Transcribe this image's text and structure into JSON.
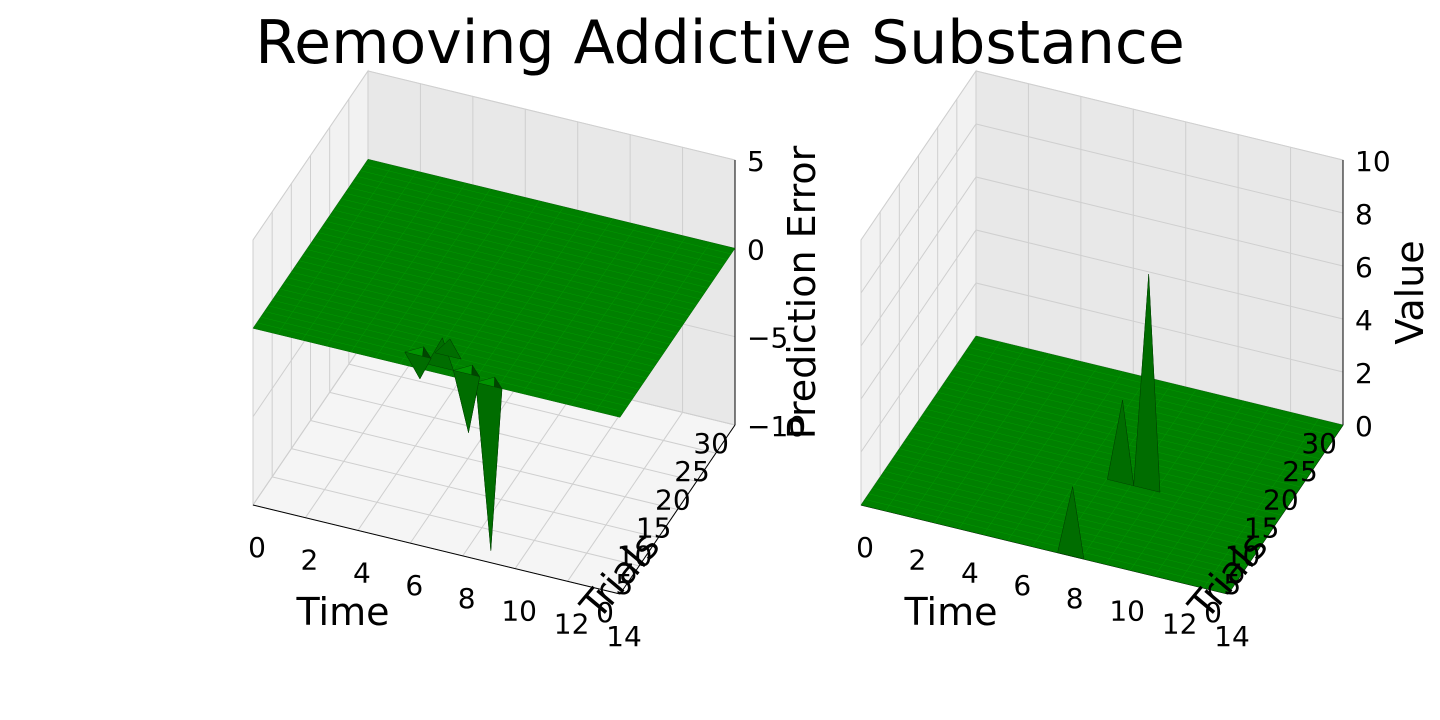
{
  "figure": {
    "title": "Removing Addictive Substance"
  },
  "chart_data": [
    {
      "type": "surface3d",
      "xlabel": "Time",
      "ylabel": "Trials",
      "zlabel": "Prediction Error",
      "xlim": [
        0,
        14
      ],
      "ylim": [
        0,
        30
      ],
      "zlim": [
        -10,
        5
      ],
      "x_ticks": [
        "0",
        "2",
        "4",
        "6",
        "8",
        "10",
        "12",
        "14"
      ],
      "y_ticks": [
        "0",
        "5",
        "10",
        "15",
        "20",
        "25",
        "30"
      ],
      "z_ticks": [
        "-10",
        "-5",
        "0",
        "5"
      ],
      "surface_color": "#008000",
      "features": [
        {
          "time": 9,
          "trial": 0,
          "value": -9.5
        },
        {
          "time": 8,
          "trial": 1,
          "value": -3.5
        },
        {
          "time": 7,
          "trial": 1,
          "value": 1.5
        },
        {
          "time": 6,
          "trial": 2,
          "value": -1.5
        },
        {
          "time": 7,
          "trial": 3,
          "value": 0.8
        }
      ]
    },
    {
      "type": "surface3d",
      "xlabel": "Time",
      "ylabel": "Trials",
      "zlabel": "Value",
      "xlim": [
        0,
        14
      ],
      "ylim": [
        0,
        30
      ],
      "zlim": [
        0,
        10
      ],
      "x_ticks": [
        "0",
        "2",
        "4",
        "6",
        "8",
        "10",
        "12",
        "14"
      ],
      "y_ticks": [
        "0",
        "5",
        "10",
        "15",
        "20",
        "25",
        "30"
      ],
      "z_ticks": [
        "0",
        "2",
        "4",
        "6",
        "8",
        "10"
      ],
      "surface_color": "#008000",
      "features": [
        {
          "time": 9,
          "trial": 13,
          "value": 8
        },
        {
          "time": 8,
          "trial": 13,
          "value": 3
        },
        {
          "time": 8,
          "trial": 0,
          "value": 2.5
        }
      ]
    }
  ]
}
